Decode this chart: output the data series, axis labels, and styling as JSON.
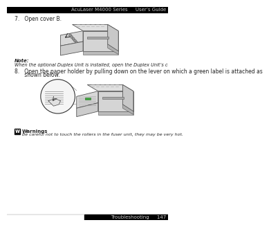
{
  "bg_color": "#ffffff",
  "header_bg": "#000000",
  "header_text": "AcuLaser M4000 Series     User’s Guide",
  "header_text_color": "#cccccc",
  "header_fontsize": 5.0,
  "footer_bg": "#000000",
  "footer_text": "Troubleshooting     147",
  "footer_text_color": "#cccccc",
  "footer_fontsize": 5.0,
  "step7_label": "7.   Open cover B.",
  "step8_label_line1": "8.   Open the paper holder by pulling down on the lever on which a green label is attached as",
  "step8_label_line2": "      shown below.",
  "note_bold": "Note:",
  "note_text": "When the optional Duplex Unit is installed, open the Duplex Unit’s cover before opening cover B.",
  "warning_bold": "Warnings",
  "warning_text": "Be careful not to touch the rollers in the fuser unit, they may be very hot.",
  "text_color": "#222222",
  "body_fontsize": 5.0,
  "label_fontsize": 5.5,
  "divider_color": "#aaaaaa",
  "line_color": "#555555",
  "fill_light": "#e8e8e8",
  "fill_mid": "#d0d0d0",
  "fill_dark": "#b0b0b0"
}
